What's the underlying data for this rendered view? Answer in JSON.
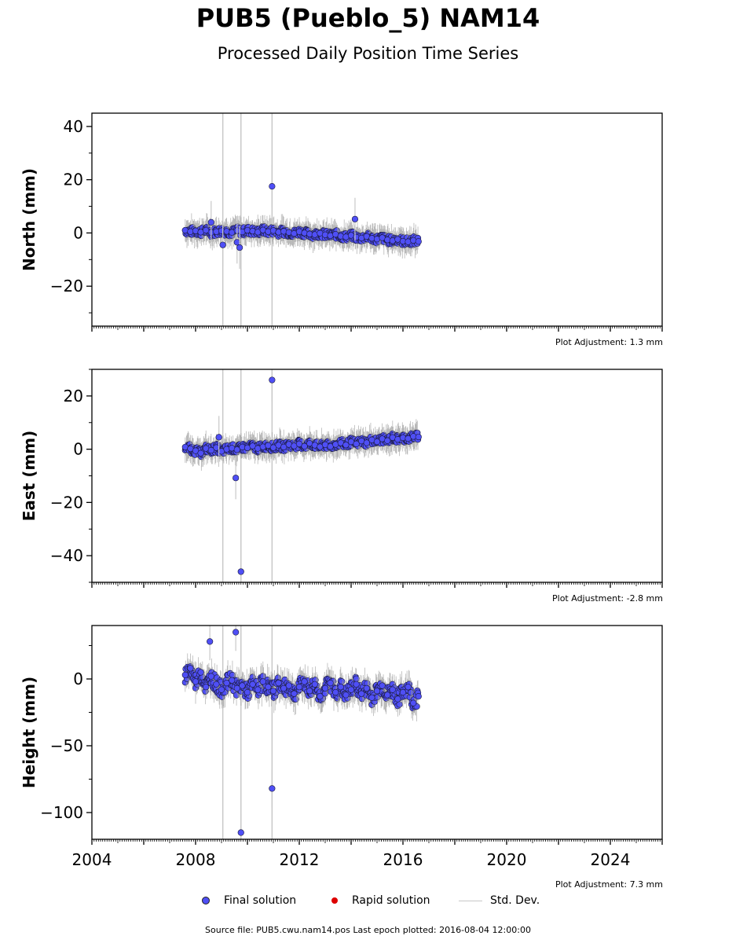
{
  "header": {
    "title": "PUB5 (Pueblo_5) NAM14",
    "subtitle": "Processed Daily Position Time Series"
  },
  "adjustments": {
    "north": "Plot Adjustment: 1.3 mm",
    "east": "Plot Adjustment: -2.8 mm",
    "height": "Plot Adjustment: 7.3 mm"
  },
  "legend": {
    "final": "Final solution",
    "rapid": "Rapid solution",
    "std": "Std. Dev."
  },
  "footer": "Source file: PUB5.cwu.nam14.pos  Last epoch plotted: 2016-08-04 12:00:00",
  "colors": {
    "final": "#4f4ff5",
    "rapid": "#dd0000",
    "std": "#c8c8c8"
  },
  "chart_data": [
    {
      "type": "scatter",
      "ylabel": "North (mm)",
      "xlim": [
        2004,
        2026
      ],
      "ylim": [
        -35,
        45
      ],
      "yticks": [
        -20,
        0,
        20,
        40
      ],
      "series": [
        {
          "name": "Final solution",
          "x": [
            2007.6,
            2007.8,
            2008.0,
            2008.2,
            2008.4,
            2008.6,
            2008.8,
            2009.0,
            2009.2,
            2009.4,
            2009.6,
            2009.8,
            2010.0,
            2010.2,
            2010.4,
            2010.6,
            2010.8,
            2011.0,
            2011.2,
            2011.4,
            2011.6,
            2011.8,
            2012.0,
            2012.2,
            2012.4,
            2012.6,
            2012.8,
            2013.0,
            2013.2,
            2013.4,
            2013.6,
            2013.8,
            2014.0,
            2014.2,
            2014.4,
            2014.6,
            2014.8,
            2015.0,
            2015.2,
            2015.4,
            2015.6,
            2015.8,
            2016.0,
            2016.2,
            2016.4,
            2016.6
          ],
          "y": [
            1.0,
            0.5,
            0.8,
            0.3,
            1.0,
            0.2,
            0.5,
            0.8,
            0.6,
            0.2,
            0.9,
            0.4,
            1.0,
            0.7,
            0.3,
            1.1,
            0.5,
            0.9,
            0.3,
            0.6,
            0.2,
            -0.2,
            0.5,
            0.0,
            -0.4,
            -0.6,
            -0.1,
            -0.7,
            -1.0,
            -0.5,
            -1.2,
            -1.5,
            -0.9,
            -1.6,
            -1.9,
            -1.3,
            -2.0,
            -2.3,
            -1.8,
            -2.6,
            -2.9,
            -2.4,
            -3.1,
            -3.3,
            -2.8,
            -3.2
          ],
          "outliers": {
            "x": [
              2008.6,
              2009.05,
              2009.6,
              2009.7,
              2010.95,
              2014.15
            ],
            "y": [
              4.0,
              -4.5,
              -3.5,
              -5.5,
              17.5,
              5.2
            ]
          }
        }
      ]
    },
    {
      "type": "scatter",
      "ylabel": "East (mm)",
      "xlim": [
        2004,
        2026
      ],
      "ylim": [
        -50,
        30
      ],
      "yticks": [
        -40,
        -20,
        0,
        20
      ],
      "series": [
        {
          "name": "Final solution",
          "x": [
            2007.6,
            2007.8,
            2008.0,
            2008.2,
            2008.4,
            2008.6,
            2008.8,
            2009.0,
            2009.2,
            2009.4,
            2009.6,
            2009.8,
            2010.0,
            2010.2,
            2010.4,
            2010.6,
            2010.8,
            2011.0,
            2011.2,
            2011.4,
            2011.6,
            2011.8,
            2012.0,
            2012.2,
            2012.4,
            2012.6,
            2012.8,
            2013.0,
            2013.2,
            2013.4,
            2013.6,
            2013.8,
            2014.0,
            2014.2,
            2014.4,
            2014.6,
            2014.8,
            2015.0,
            2015.2,
            2015.4,
            2015.6,
            2015.8,
            2016.0,
            2016.2,
            2016.4,
            2016.6
          ],
          "y": [
            0.8,
            0.2,
            -0.6,
            -1.5,
            0.3,
            -0.4,
            0.6,
            -0.8,
            0.0,
            0.4,
            -0.2,
            0.8,
            0.5,
            1.2,
            0.3,
            0.9,
            1.4,
            0.6,
            1.5,
            0.8,
            1.8,
            1.2,
            2.0,
            1.1,
            2.2,
            1.5,
            0.9,
            1.7,
            1.0,
            1.8,
            2.4,
            1.6,
            2.8,
            2.0,
            3.1,
            2.4,
            3.5,
            2.8,
            3.9,
            3.2,
            4.4,
            3.7,
            4.3,
            4.0,
            4.8,
            4.6
          ],
          "outliers": {
            "x": [
              2008.9,
              2009.55,
              2009.75,
              2010.95
            ],
            "y": [
              4.5,
              -10.8,
              -46.0,
              26.0
            ]
          }
        }
      ]
    },
    {
      "type": "scatter",
      "ylabel": "Height (mm)",
      "xlim": [
        2004,
        2026
      ],
      "ylim": [
        -120,
        40
      ],
      "yticks": [
        -100,
        -50,
        0
      ],
      "series": [
        {
          "name": "Final solution",
          "x": [
            2007.6,
            2007.8,
            2008.0,
            2008.2,
            2008.4,
            2008.6,
            2008.8,
            2009.0,
            2009.2,
            2009.4,
            2009.6,
            2009.8,
            2010.0,
            2010.2,
            2010.4,
            2010.6,
            2010.8,
            2011.0,
            2011.2,
            2011.4,
            2011.6,
            2011.8,
            2012.0,
            2012.2,
            2012.4,
            2012.6,
            2012.8,
            2013.0,
            2013.2,
            2013.4,
            2013.6,
            2013.8,
            2014.0,
            2014.2,
            2014.4,
            2014.6,
            2014.8,
            2015.0,
            2015.2,
            2015.4,
            2015.6,
            2015.8,
            2016.0,
            2016.2,
            2016.4,
            2016.6
          ],
          "y": [
            3,
            8,
            -2,
            5,
            -6,
            2,
            -4,
            -8,
            -3,
            -1,
            -7,
            -5,
            -10,
            -4,
            -8,
            -2,
            -6,
            -9,
            -3,
            -7,
            -5,
            -11,
            -6,
            -2,
            -9,
            -4,
            -13,
            -7,
            -3,
            -10,
            -6,
            -12,
            -8,
            -4,
            -11,
            -7,
            -14,
            -9,
            -5,
            -12,
            -8,
            -15,
            -10,
            -6,
            -18,
            -13
          ],
          "outliers": {
            "x": [
              2008.55,
              2009.55,
              2009.75,
              2010.95
            ],
            "y": [
              28,
              35,
              -115,
              -82
            ]
          }
        }
      ]
    }
  ],
  "x_axis": {
    "ticks": [
      2004,
      2008,
      2012,
      2016,
      2020,
      2024
    ]
  }
}
